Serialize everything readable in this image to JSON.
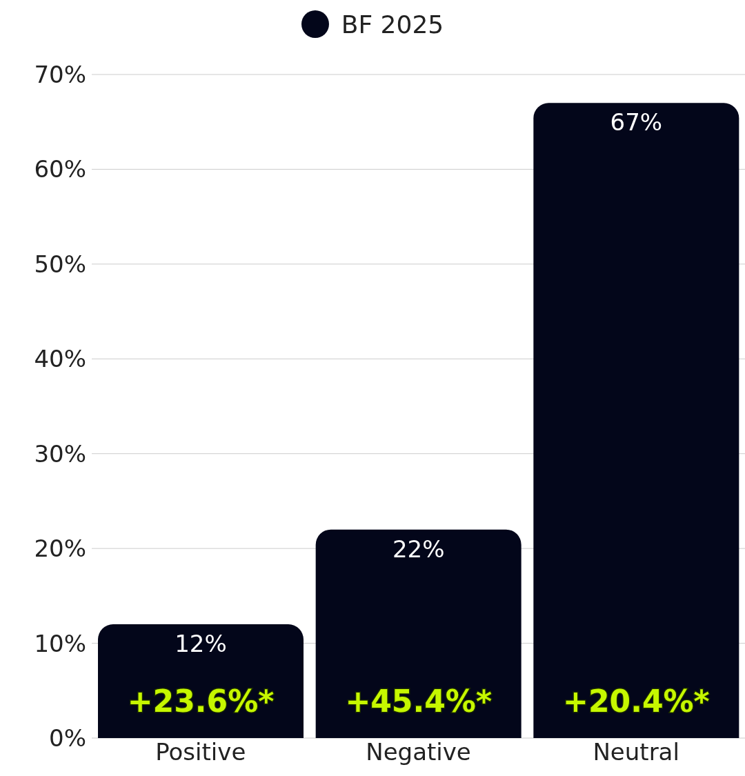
{
  "chart_data": {
    "type": "bar",
    "categories": [
      "Positive",
      "Negative",
      "Neutral"
    ],
    "series": [
      {
        "name": "BF 2025",
        "color": "#03061a",
        "values": [
          12,
          22,
          67
        ],
        "value_labels": [
          "12%",
          "22%",
          "67%"
        ]
      }
    ],
    "ylim": [
      0,
      70
    ],
    "yticks": [
      {
        "value": 0,
        "label": "0%"
      },
      {
        "value": 10,
        "label": "10%"
      },
      {
        "value": 20,
        "label": "20%"
      },
      {
        "value": 30,
        "label": "30%"
      },
      {
        "value": 40,
        "label": "40%"
      },
      {
        "value": 50,
        "label": "50%"
      },
      {
        "value": 60,
        "label": "60%"
      },
      {
        "value": 70,
        "label": "70%"
      }
    ],
    "grid": "y",
    "legend": "top",
    "annotations": [
      "+23.6%*",
      "+45.4%*",
      "+20.4%*"
    ]
  }
}
